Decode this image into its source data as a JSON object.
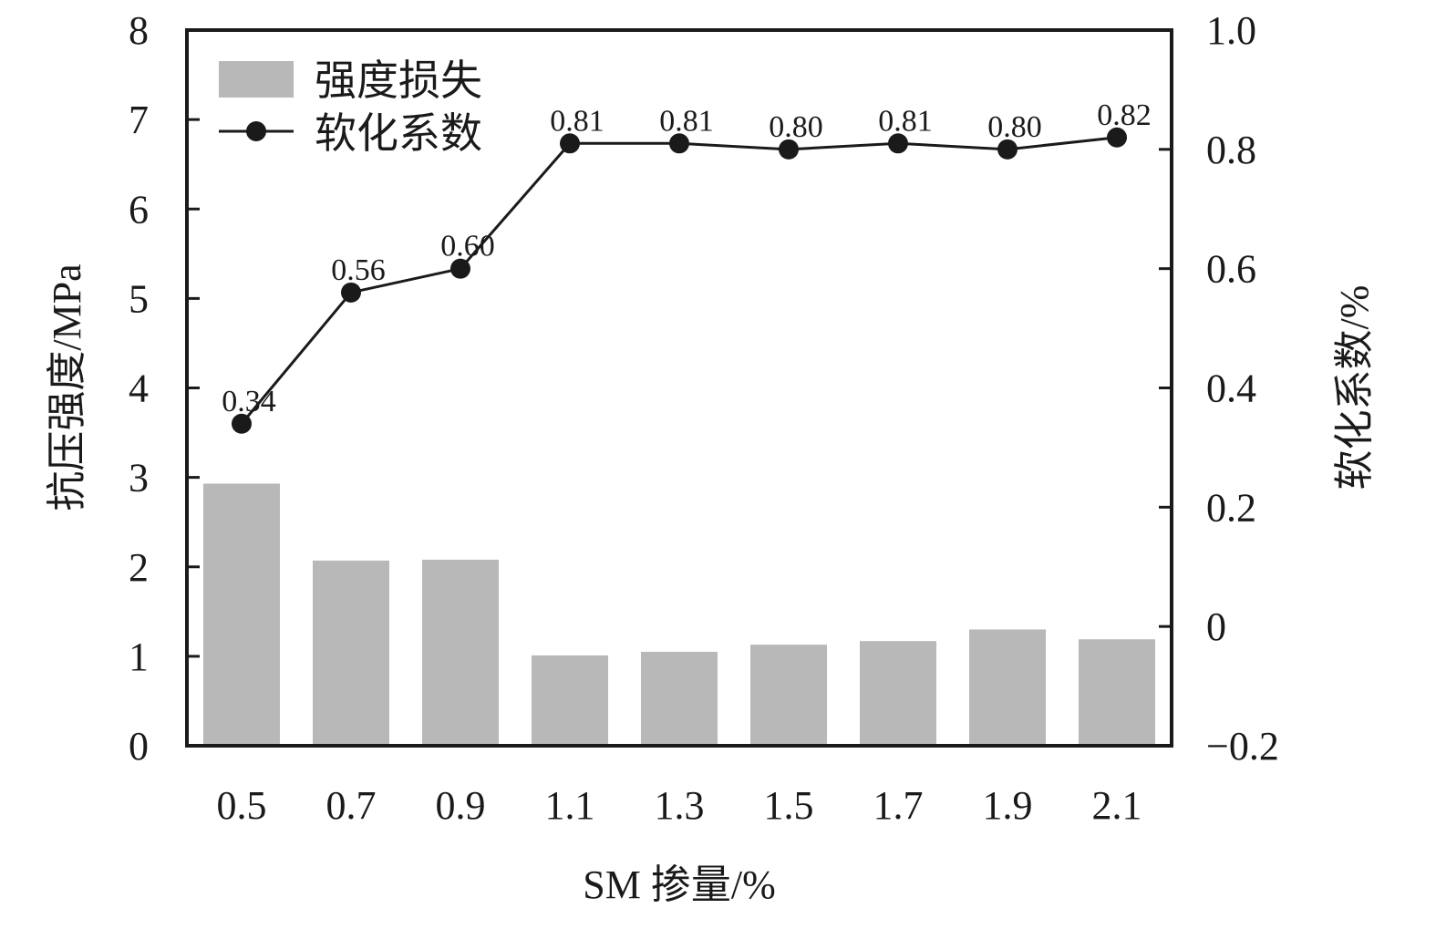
{
  "chart_data": {
    "type": "bar",
    "categories": [
      "0.5",
      "0.7",
      "0.9",
      "1.1",
      "1.3",
      "1.5",
      "1.7",
      "1.9",
      "2.1"
    ],
    "xlabel": "SM 掺量/%",
    "ylabel": "抗压强度/MPa",
    "ylabel_right": "软化系数/%",
    "ylim": [
      0,
      8
    ],
    "ylim_right": [
      -0.2,
      1.0
    ],
    "yticks": [
      "0",
      "1",
      "2",
      "3",
      "4",
      "5",
      "6",
      "7",
      "8"
    ],
    "yticks_right": [
      "−0.2",
      "0",
      "0.2",
      "0.4",
      "0.6",
      "0.8",
      "1.0"
    ],
    "grid": false,
    "legend_position": "top-left",
    "series": [
      {
        "name": "强度损失",
        "type": "bar",
        "axis": "left",
        "color": "#b8b8b8",
        "values": [
          2.93,
          2.07,
          2.08,
          1.01,
          1.05,
          1.13,
          1.17,
          1.3,
          1.19
        ]
      },
      {
        "name": "软化系数",
        "type": "line",
        "axis": "right",
        "color": "#1a1a1a",
        "values": [
          0.34,
          0.56,
          0.6,
          0.81,
          0.81,
          0.8,
          0.81,
          0.8,
          0.82
        ],
        "data_labels": [
          "0.34",
          "0.56",
          "0.60",
          "0.81",
          "0.81",
          "0.80",
          "0.81",
          "0.80",
          "0.82"
        ]
      }
    ]
  }
}
